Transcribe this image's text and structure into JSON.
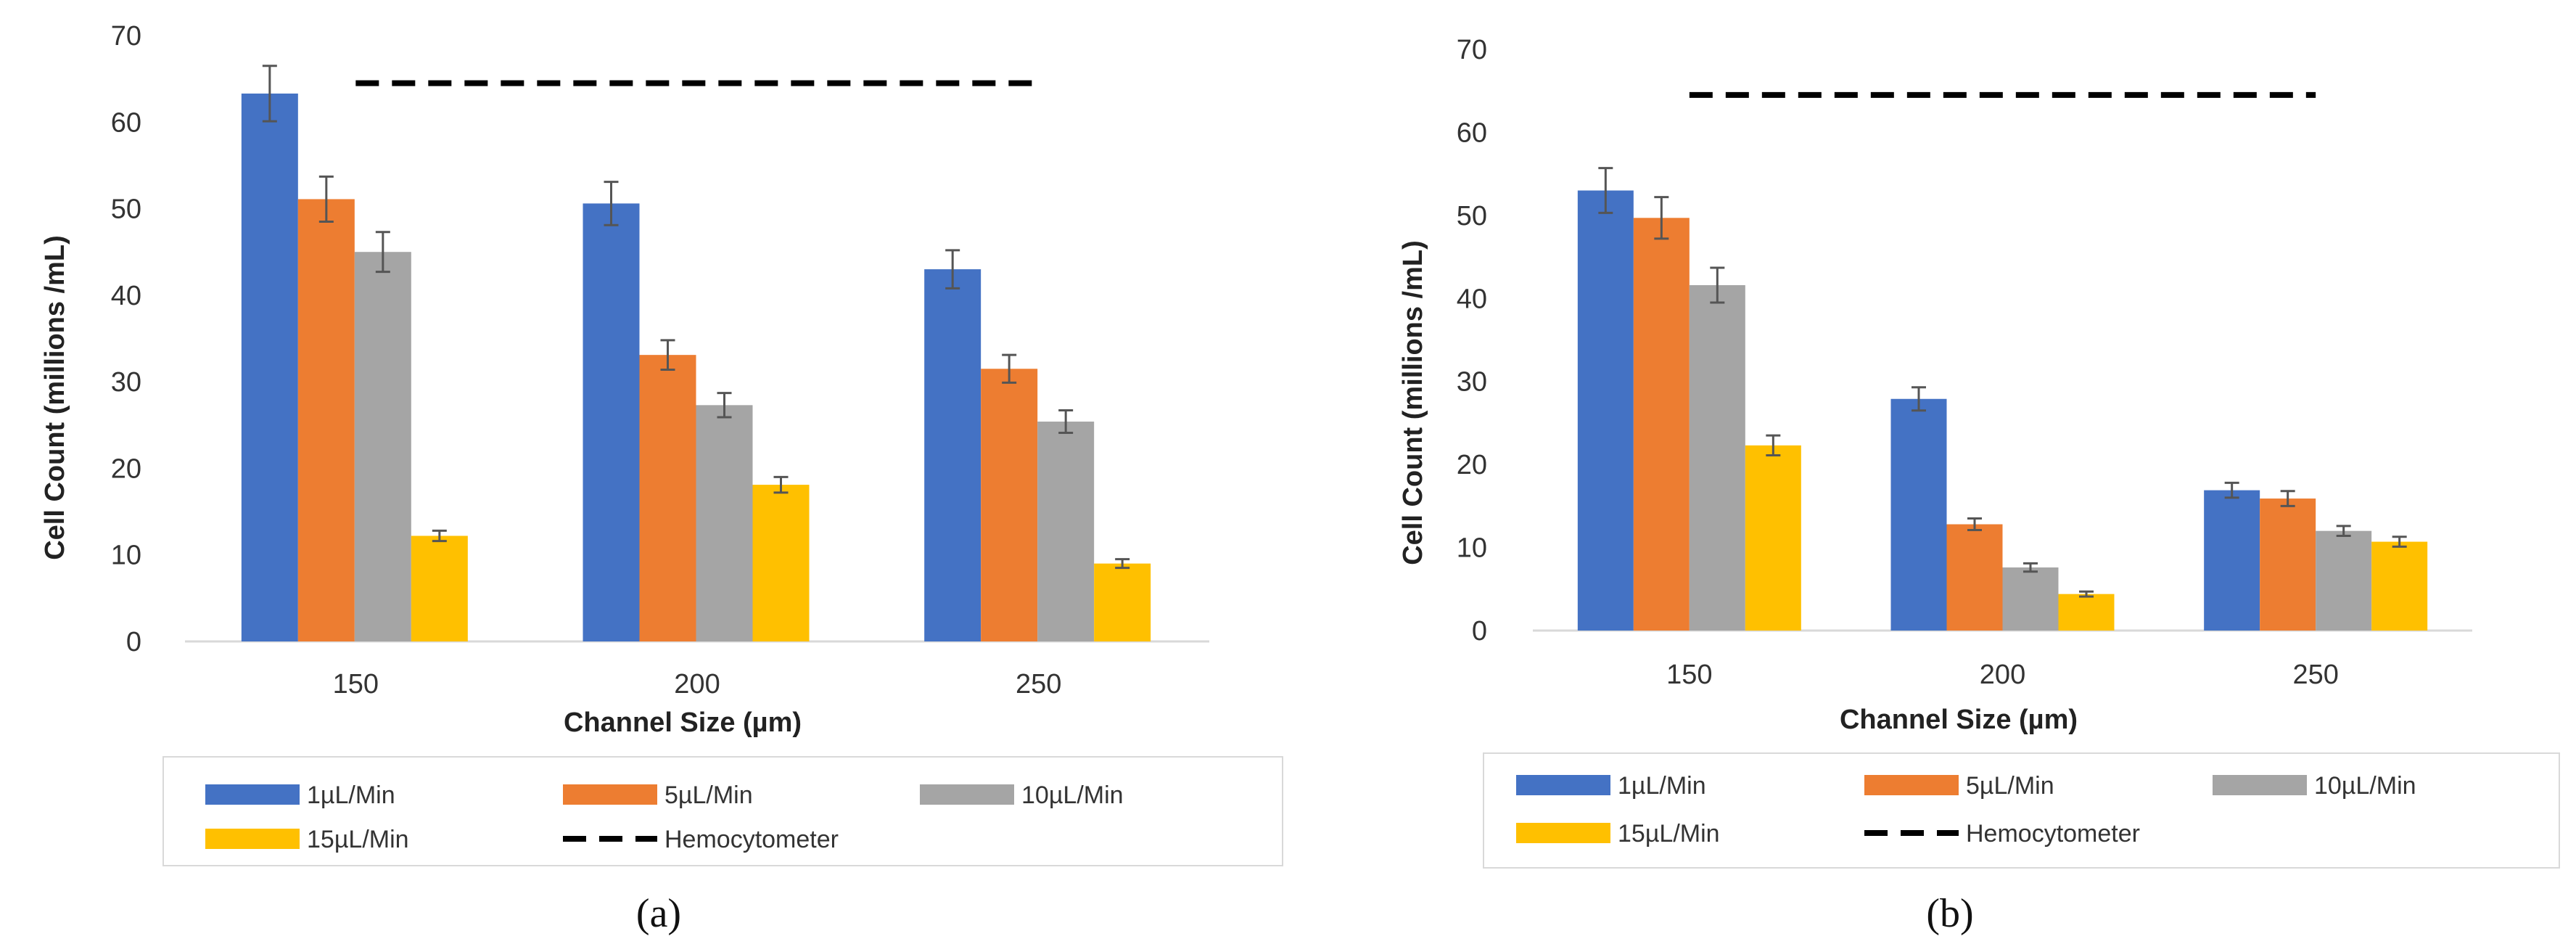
{
  "chart_data": [
    {
      "panel": "a",
      "type": "bar",
      "caption": "(a)",
      "xlabel": "Channel Size (µm)",
      "ylabel": "Cell Count (millions /mL)",
      "ylim": [
        0,
        70
      ],
      "yticks": [
        "0",
        "10",
        "20",
        "30",
        "40",
        "50",
        "60",
        "70"
      ],
      "categories": [
        "150",
        "200",
        "250"
      ],
      "series": [
        {
          "name": "1µL/Min",
          "color": "#4472C4",
          "values": [
            63.3,
            50.6,
            43.0
          ],
          "errors": [
            3.2,
            2.5,
            2.2
          ]
        },
        {
          "name": "5µL/Min",
          "color": "#ED7D31",
          "values": [
            51.1,
            33.1,
            31.5
          ],
          "errors": [
            2.6,
            1.7,
            1.6
          ]
        },
        {
          "name": "10µL/Min",
          "color": "#A5A5A5",
          "values": [
            45.0,
            27.3,
            25.4
          ],
          "errors": [
            2.3,
            1.4,
            1.3
          ]
        },
        {
          "name": "15µL/Min",
          "color": "#FFC000",
          "values": [
            12.2,
            18.1,
            9.0
          ],
          "errors": [
            0.6,
            0.9,
            0.5
          ]
        }
      ],
      "reference_line": {
        "name": "Hemocytometer",
        "value": 64.5,
        "style": "dashed",
        "color": "#000000"
      },
      "legend_position": "bottom"
    },
    {
      "panel": "b",
      "type": "bar",
      "caption": "(b)",
      "xlabel": "Channel Size (µm)",
      "ylabel": "Cell Count (millions /mL)",
      "ylim": [
        0,
        70
      ],
      "yticks": [
        "0",
        "10",
        "20",
        "30",
        "40",
        "50",
        "60",
        "70"
      ],
      "categories": [
        "150",
        "200",
        "250"
      ],
      "series": [
        {
          "name": "1µL/Min",
          "color": "#4472C4",
          "values": [
            53.0,
            27.9,
            16.9
          ],
          "errors": [
            2.7,
            1.4,
            0.9
          ]
        },
        {
          "name": "5µL/Min",
          "color": "#ED7D31",
          "values": [
            49.7,
            12.8,
            15.9
          ],
          "errors": [
            2.5,
            0.7,
            0.9
          ]
        },
        {
          "name": "10µL/Min",
          "color": "#A5A5A5",
          "values": [
            41.6,
            7.6,
            12.0
          ],
          "errors": [
            2.1,
            0.5,
            0.6
          ]
        },
        {
          "name": "15µL/Min",
          "color": "#FFC000",
          "values": [
            22.3,
            4.4,
            10.7
          ],
          "errors": [
            1.2,
            0.3,
            0.6
          ]
        }
      ],
      "reference_line": {
        "name": "Hemocytometer",
        "value": 64.5,
        "style": "dashed",
        "color": "#000000"
      },
      "legend_position": "bottom"
    }
  ]
}
